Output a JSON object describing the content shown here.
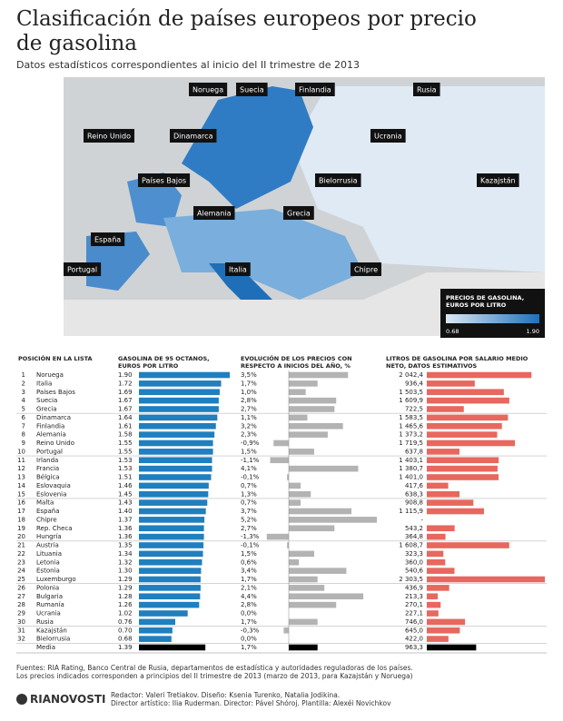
{
  "header": {
    "title_lines": [
      "Clasificación de países europeos por precio",
      "de gasolina"
    ],
    "subtitle": "Datos estadísticos correspondientes al inicio del II trimestre de 2013"
  },
  "map": {
    "labels": [
      "Noruega",
      "Suecia",
      "Finlandia",
      "Rusia",
      "Reino Unido",
      "Dinamarca",
      "Ucrania",
      "Países Bajos",
      "Bielorrusia",
      "Kazajstán",
      "Alemania",
      "Grecia",
      "España",
      "Portugal",
      "Italia",
      "Chipre"
    ],
    "legend": {
      "title_lines": [
        "PRECIOS DE GASOLINA,",
        "EUROS POR LITRO"
      ],
      "min": 0.68,
      "max": {
        "value": 1.9,
        "label": "1.90"
      }
    }
  },
  "table": {
    "headers": {
      "position": [
        "POSICIÓN EN LA LISTA"
      ],
      "price": [
        "GASOLINA DE 95 OCTANOS,",
        "EUROS POR LITRO"
      ],
      "evolution": [
        "EVOLUCIÓN DE LOS PRECIOS CON",
        "RESPECTO A INICIOS DEL AÑO, %"
      ],
      "liters": [
        "LITROS DE GASOLINA POR SALARIO MEDIO",
        "NETO, DATOS ESTIMATIVOS"
      ]
    },
    "rows": [
      {
        "position": 1,
        "country": "Noruega",
        "price": {
          "value": 1.9,
          "label": "1.90"
        },
        "evolution": {
          "value": 3.5,
          "label": "3,5%"
        },
        "liters": {
          "value": 2042.4,
          "label": "2 042,4"
        }
      },
      {
        "position": 2,
        "country": "Italia",
        "price": 1.72,
        "evolution": {
          "value": 1.7,
          "label": "1,7%"
        },
        "liters": {
          "value": 936.4,
          "label": "936,4"
        }
      },
      {
        "position": 3,
        "country": "Países Bajos",
        "price": 1.69,
        "evolution": {
          "value": 1.0,
          "label": "1,0%"
        },
        "liters": {
          "value": 1503.5,
          "label": "1 503,5"
        }
      },
      {
        "position": 4,
        "country": "Suecia",
        "price": 1.67,
        "evolution": {
          "value": 2.8,
          "label": "2,8%"
        },
        "liters": {
          "value": 1609.9,
          "label": "1 609,9"
        }
      },
      {
        "position": 5,
        "country": "Grecia",
        "price": 1.67,
        "evolution": {
          "value": 2.7,
          "label": "2,7%"
        },
        "liters": {
          "value": 722.5,
          "label": "722,5"
        }
      },
      {
        "position": 6,
        "country": "Dinamarca",
        "price": 1.64,
        "evolution": {
          "value": 1.1,
          "label": "1,1%"
        },
        "liters": {
          "value": 1583.5,
          "label": "1 583,5"
        }
      },
      {
        "position": 7,
        "country": "Finlandia",
        "price": 1.61,
        "evolution": {
          "value": 3.2,
          "label": "3,2%"
        },
        "liters": {
          "value": 1465.6,
          "label": "1 465,6"
        }
      },
      {
        "position": 8,
        "country": "Alemania",
        "price": 1.58,
        "evolution": {
          "value": 2.3,
          "label": "2,3%"
        },
        "liters": {
          "value": 1373.2,
          "label": "1 373,2"
        }
      },
      {
        "position": 9,
        "country": "Reino Unido",
        "price": 1.55,
        "evolution": {
          "value": -0.9,
          "label": "-0,9%"
        },
        "liters": {
          "value": 1719.5,
          "label": "1 719,5"
        }
      },
      {
        "position": 10,
        "country": "Portugal",
        "price": 1.55,
        "evolution": {
          "value": 1.5,
          "label": "1,5%"
        },
        "liters": {
          "value": 637.8,
          "label": "637,8"
        }
      },
      {
        "position": 11,
        "country": "Irlanda",
        "price": 1.53,
        "evolution": {
          "value": -1.1,
          "label": "-1,1%"
        },
        "liters": {
          "value": 1403.1,
          "label": "1 403,1"
        }
      },
      {
        "position": 12,
        "country": "Francia",
        "price": 1.53,
        "evolution": {
          "value": 4.1,
          "label": "4,1%"
        },
        "liters": {
          "value": 1380.7,
          "label": "1 380,7"
        }
      },
      {
        "position": 13,
        "country": "Bélgica",
        "price": 1.51,
        "evolution": {
          "value": -0.1,
          "label": "-0,1%"
        },
        "liters": {
          "value": 1401.0,
          "label": "1 401,0"
        }
      },
      {
        "position": 14,
        "country": "Eslovaquia",
        "price": 1.46,
        "evolution": {
          "value": 0.7,
          "label": "0,7%"
        },
        "liters": {
          "value": 417.6,
          "label": "417,6"
        }
      },
      {
        "position": 15,
        "country": "Eslovenia",
        "price": 1.45,
        "evolution": {
          "value": 1.3,
          "label": "1,3%"
        },
        "liters": {
          "value": 638.3,
          "label": "638,3"
        }
      },
      {
        "position": 16,
        "country": "Malta",
        "price": 1.43,
        "evolution": {
          "value": 0.7,
          "label": "0,7%"
        },
        "liters": {
          "value": 908.8,
          "label": "908,8"
        }
      },
      {
        "position": 17,
        "country": "España",
        "price": {
          "value": 1.4,
          "label": "1.40"
        },
        "evolution": {
          "value": 3.7,
          "label": "3,7%"
        },
        "liters": {
          "value": 1115.9,
          "label": "1 115,9"
        }
      },
      {
        "position": 18,
        "country": "Chipre",
        "price": 1.37,
        "evolution": {
          "value": 5.2,
          "label": "5,2%"
        },
        "liters": {
          "value": null,
          "label": "-"
        }
      },
      {
        "position": 19,
        "country": "Rep. Checa",
        "price": 1.36,
        "evolution": {
          "value": 2.7,
          "label": "2,7%"
        },
        "liters": {
          "value": 543.2,
          "label": "543,2"
        }
      },
      {
        "position": 20,
        "country": "Hungría",
        "price": 1.36,
        "evolution": {
          "value": -1.3,
          "label": "-1,3%"
        },
        "liters": {
          "value": 364.8,
          "label": "364,8"
        }
      },
      {
        "position": 21,
        "country": "Austria",
        "price": 1.35,
        "evolution": {
          "value": -0.1,
          "label": "-0,1%"
        },
        "liters": {
          "value": 1608.7,
          "label": "1 608,7"
        }
      },
      {
        "position": 22,
        "country": "Lituania",
        "price": 1.34,
        "evolution": {
          "value": 1.5,
          "label": "1,5%"
        },
        "liters": {
          "value": 323.3,
          "label": "323,3"
        }
      },
      {
        "position": 23,
        "country": "Letonia",
        "price": 1.32,
        "evolution": {
          "value": 0.6,
          "label": "0,6%"
        },
        "liters": {
          "value": 360.0,
          "label": "360,0"
        }
      },
      {
        "position": 24,
        "country": "Estonia",
        "price": {
          "value": 1.3,
          "label": "1.30"
        },
        "evolution": {
          "value": 3.4,
          "label": "3,4%"
        },
        "liters": {
          "value": 540.6,
          "label": "540,6"
        }
      },
      {
        "position": 25,
        "country": "Luxemburgo",
        "price": 1.29,
        "evolution": {
          "value": 1.7,
          "label": "1,7%"
        },
        "liters": {
          "value": 2303.5,
          "label": "2 303,5"
        }
      },
      {
        "position": 26,
        "country": "Polonia",
        "price": 1.29,
        "evolution": {
          "value": 2.1,
          "label": "2,1%"
        },
        "liters": {
          "value": 436.9,
          "label": "436,9"
        }
      },
      {
        "position": 27,
        "country": "Bulgaria",
        "price": 1.28,
        "evolution": {
          "value": 4.4,
          "label": "4,4%"
        },
        "liters": {
          "value": 213.3,
          "label": "213,3"
        }
      },
      {
        "position": 28,
        "country": "Rumanía",
        "price": 1.26,
        "evolution": {
          "value": 2.8,
          "label": "2,8%"
        },
        "liters": {
          "value": 270.1,
          "label": "270,1"
        }
      },
      {
        "position": 29,
        "country": "Ucrania",
        "price": 1.02,
        "evolution": {
          "value": 0.0,
          "label": "0,0%"
        },
        "liters": {
          "value": 227.1,
          "label": "227,1"
        }
      },
      {
        "position": 30,
        "country": "Rusia",
        "price": 0.76,
        "evolution": {
          "value": 1.7,
          "label": "1,7%"
        },
        "liters": {
          "value": 746.0,
          "label": "746,0"
        }
      },
      {
        "position": 31,
        "country": "Kazajstán",
        "price": {
          "value": 0.7,
          "label": "0.70"
        },
        "evolution": {
          "value": -0.3,
          "label": "-0,3%"
        },
        "liters": {
          "value": 645.0,
          "label": "645,0"
        }
      },
      {
        "position": 32,
        "country": "Bielorrusia",
        "price": 0.68,
        "evolution": {
          "value": 0.0,
          "label": "0,0%"
        },
        "liters": {
          "value": 422.0,
          "label": "422,0"
        }
      }
    ],
    "average": {
      "country": "Media",
      "price": 1.39,
      "evolution": {
        "value": 1.7,
        "label": "1,7%"
      },
      "liters": {
        "value": 963.3,
        "label": "963,3"
      }
    }
  },
  "footer": {
    "sources": [
      "Fuentes: RIA Rating, Banco Central de Rusia, departamentos de estadística y autoridades reguladoras de los países.",
      "Los precios indicados corresponden a principios del II trimestre de 2013 (marzo de 2013, para Kazajstán y Noruega)"
    ],
    "logo": "RIANOVOSTI",
    "credits": [
      "Redactor: Valeri Tretiakov. Diseño: Ksenia Turenko, Natalia Jodikina.",
      "Director artístico: Ilia Ruderman. Director: Pável Shóroj. Plantilla: Alexéi Novichkov"
    ]
  }
}
